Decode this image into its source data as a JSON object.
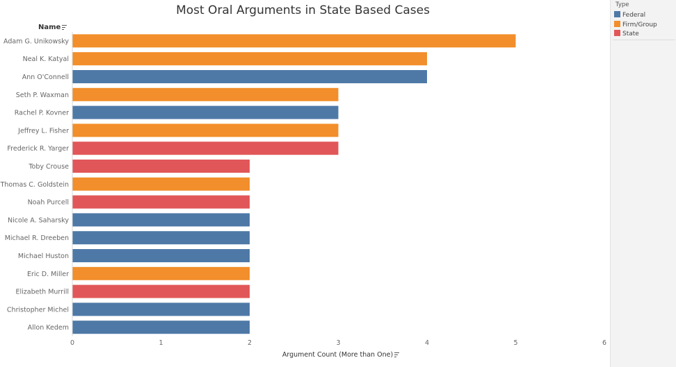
{
  "chart_data": {
    "type": "bar",
    "orientation": "horizontal",
    "title": "Most Oral Arguments in State Based Cases",
    "row_header": "Name",
    "xlabel": "Argument Count (More than One)",
    "xlim": [
      0,
      6
    ],
    "x_ticks": [
      "0",
      "1",
      "2",
      "3",
      "4",
      "5",
      "6"
    ],
    "grid": false,
    "legend_position": "top-right",
    "legend_title": "Type",
    "legend": [
      {
        "label": "Federal",
        "color": "#4e79a7"
      },
      {
        "label": "Firm/Group",
        "color": "#f28e2b"
      },
      {
        "label": "State",
        "color": "#e15759"
      }
    ],
    "categories": [
      "Adam G. Unikowsky",
      "Neal K. Katyal",
      "Ann O'Connell",
      "Seth P. Waxman",
      "Rachel P. Kovner",
      "Jeffrey L. Fisher",
      "Frederick R. Yarger",
      "Toby Crouse",
      "Thomas C. Goldstein",
      "Noah Purcell",
      "Nicole A. Saharsky",
      "Michael R. Dreeben",
      "Michael Huston",
      "Eric D. Miller",
      "Elizabeth Murrill",
      "Christopher Michel",
      "Allon Kedem"
    ],
    "values": [
      5,
      4,
      4,
      3,
      3,
      3,
      3,
      2,
      2,
      2,
      2,
      2,
      2,
      2,
      2,
      2,
      2
    ],
    "types": [
      "Firm/Group",
      "Firm/Group",
      "Federal",
      "Firm/Group",
      "Federal",
      "Firm/Group",
      "State",
      "State",
      "Firm/Group",
      "State",
      "Federal",
      "Federal",
      "Federal",
      "Firm/Group",
      "State",
      "Federal",
      "Federal"
    ]
  },
  "icons": {
    "name_sort": "sort-descending-icon",
    "axis_sort": "sort-descending-icon"
  }
}
